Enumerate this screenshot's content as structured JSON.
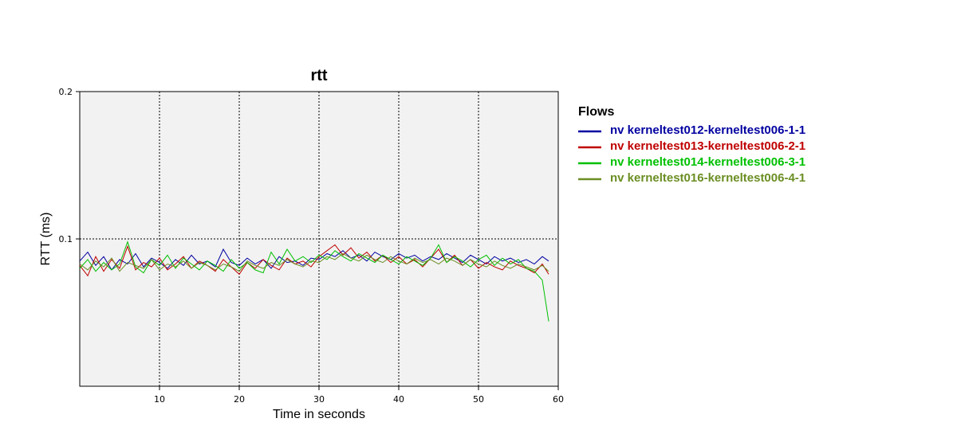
{
  "chart_data": {
    "type": "line",
    "title": "rtt",
    "xlabel": "Time in seconds",
    "ylabel": "RTT (ms)",
    "xlim": [
      0,
      60
    ],
    "ylim": [
      0,
      0.2
    ],
    "xticks": [
      10,
      20,
      30,
      40,
      50,
      60
    ],
    "yticks": [
      0.1,
      0.2
    ],
    "xtick_labels": [
      "10",
      "20",
      "30",
      "40",
      "50",
      "60"
    ],
    "ytick_labels": [
      "0.1",
      "0.2"
    ],
    "grid": true,
    "legend_title": "Flows",
    "legend_position": "right",
    "series": [
      {
        "name": "nv kerneltest012-kerneltest006-1-1",
        "color": "#0000a0",
        "x": [
          0,
          1,
          2,
          3,
          4,
          5,
          6,
          7,
          8,
          9,
          10,
          11,
          12,
          13,
          14,
          15,
          16,
          17,
          18,
          19,
          20,
          21,
          22,
          23,
          24,
          25,
          26,
          27,
          28,
          29,
          30,
          31,
          32,
          33,
          34,
          35,
          36,
          37,
          38,
          39,
          40,
          41,
          42,
          43,
          44,
          45,
          46,
          47,
          48,
          49,
          50,
          51,
          52,
          53,
          54,
          55,
          56,
          57,
          58,
          58.8
        ],
        "y": [
          0.085,
          0.091,
          0.082,
          0.088,
          0.079,
          0.086,
          0.083,
          0.09,
          0.081,
          0.087,
          0.084,
          0.08,
          0.086,
          0.082,
          0.089,
          0.083,
          0.085,
          0.081,
          0.093,
          0.084,
          0.082,
          0.087,
          0.083,
          0.086,
          0.08,
          0.088,
          0.084,
          0.085,
          0.082,
          0.087,
          0.086,
          0.09,
          0.088,
          0.092,
          0.087,
          0.089,
          0.085,
          0.091,
          0.088,
          0.086,
          0.09,
          0.087,
          0.089,
          0.085,
          0.088,
          0.086,
          0.09,
          0.087,
          0.084,
          0.089,
          0.086,
          0.083,
          0.088,
          0.085,
          0.087,
          0.084,
          0.086,
          0.083,
          0.088,
          0.085
        ]
      },
      {
        "name": "nv kerneltest013-kerneltest006-2-1",
        "color": "#c00000",
        "x": [
          0,
          1,
          2,
          3,
          4,
          5,
          6,
          7,
          8,
          9,
          10,
          11,
          12,
          13,
          14,
          15,
          16,
          17,
          18,
          19,
          20,
          21,
          22,
          23,
          24,
          25,
          26,
          27,
          28,
          29,
          30,
          31,
          32,
          33,
          34,
          35,
          36,
          37,
          38,
          39,
          40,
          41,
          42,
          43,
          44,
          45,
          46,
          47,
          48,
          49,
          50,
          51,
          52,
          53,
          54,
          55,
          56,
          57,
          58,
          58.8
        ],
        "y": [
          0.082,
          0.075,
          0.088,
          0.078,
          0.086,
          0.08,
          0.095,
          0.079,
          0.084,
          0.081,
          0.087,
          0.079,
          0.083,
          0.088,
          0.08,
          0.085,
          0.082,
          0.078,
          0.086,
          0.081,
          0.076,
          0.084,
          0.08,
          0.086,
          0.082,
          0.079,
          0.087,
          0.083,
          0.085,
          0.081,
          0.088,
          0.092,
          0.096,
          0.089,
          0.094,
          0.087,
          0.091,
          0.085,
          0.089,
          0.084,
          0.088,
          0.083,
          0.086,
          0.081,
          0.087,
          0.093,
          0.084,
          0.089,
          0.082,
          0.086,
          0.08,
          0.084,
          0.081,
          0.079,
          0.085,
          0.082,
          0.08,
          0.077,
          0.083,
          0.076
        ]
      },
      {
        "name": "nv kerneltest014-kerneltest006-3-1",
        "color": "#00c000",
        "x": [
          0,
          1,
          2,
          3,
          4,
          5,
          6,
          7,
          8,
          9,
          10,
          11,
          12,
          13,
          14,
          15,
          16,
          17,
          18,
          19,
          20,
          21,
          22,
          23,
          24,
          25,
          26,
          27,
          28,
          29,
          30,
          31,
          32,
          33,
          34,
          35,
          36,
          37,
          38,
          39,
          40,
          41,
          42,
          43,
          44,
          45,
          46,
          47,
          48,
          49,
          50,
          51,
          52,
          53,
          54,
          55,
          56,
          57,
          58,
          58.8
        ],
        "y": [
          0.08,
          0.086,
          0.078,
          0.084,
          0.079,
          0.083,
          0.098,
          0.081,
          0.077,
          0.086,
          0.082,
          0.089,
          0.08,
          0.087,
          0.083,
          0.079,
          0.085,
          0.082,
          0.078,
          0.086,
          0.08,
          0.084,
          0.079,
          0.077,
          0.091,
          0.083,
          0.093,
          0.085,
          0.088,
          0.084,
          0.089,
          0.086,
          0.092,
          0.088,
          0.085,
          0.09,
          0.087,
          0.084,
          0.089,
          0.086,
          0.083,
          0.088,
          0.085,
          0.082,
          0.087,
          0.096,
          0.084,
          0.088,
          0.085,
          0.081,
          0.086,
          0.089,
          0.082,
          0.087,
          0.083,
          0.086,
          0.08,
          0.078,
          0.072,
          0.044
        ]
      },
      {
        "name": "nv kerneltest016-kerneltest006-4-1",
        "color": "#6b8e23",
        "x": [
          0,
          1,
          2,
          3,
          4,
          5,
          6,
          7,
          8,
          9,
          10,
          11,
          12,
          13,
          14,
          15,
          16,
          17,
          18,
          19,
          20,
          21,
          22,
          23,
          24,
          25,
          26,
          27,
          28,
          29,
          30,
          31,
          32,
          33,
          34,
          35,
          36,
          37,
          38,
          39,
          40,
          41,
          42,
          43,
          44,
          45,
          46,
          47,
          48,
          49,
          50,
          51,
          52,
          53,
          54,
          55,
          56,
          57,
          58,
          58.8
        ],
        "y": [
          0.083,
          0.079,
          0.085,
          0.081,
          0.087,
          0.078,
          0.084,
          0.082,
          0.08,
          0.086,
          0.079,
          0.083,
          0.081,
          0.085,
          0.08,
          0.084,
          0.082,
          0.079,
          0.083,
          0.081,
          0.078,
          0.085,
          0.082,
          0.08,
          0.084,
          0.082,
          0.086,
          0.083,
          0.081,
          0.085,
          0.084,
          0.088,
          0.086,
          0.09,
          0.087,
          0.085,
          0.089,
          0.086,
          0.084,
          0.088,
          0.085,
          0.083,
          0.087,
          0.084,
          0.086,
          0.083,
          0.087,
          0.085,
          0.082,
          0.086,
          0.083,
          0.081,
          0.085,
          0.082,
          0.08,
          0.083,
          0.081,
          0.079,
          0.082,
          0.078
        ]
      }
    ]
  }
}
